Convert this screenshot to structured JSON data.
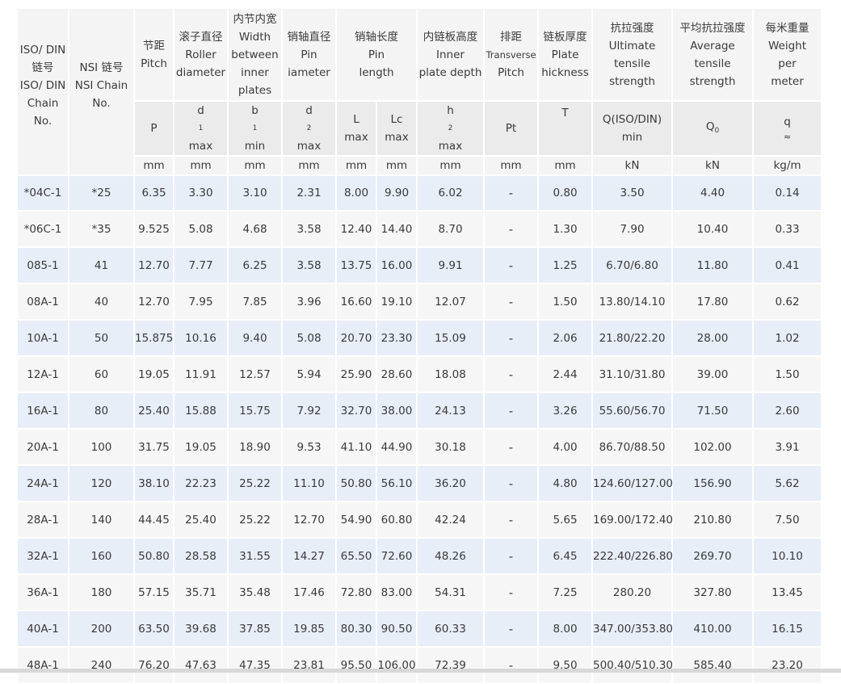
{
  "header": {
    "col_iso": [
      "ISO/ DIN",
      "链号",
      "ISO/ DIN",
      "Chain",
      "No."
    ],
    "col_ansi": [
      "NSI 链号",
      "NSI Chain",
      "No."
    ],
    "col_pitch": [
      "节距",
      "Pitch"
    ],
    "col_roller": [
      "滚子直径",
      "Roller",
      "diameter"
    ],
    "col_width": [
      "内节内宽",
      "Width",
      "between",
      "inner",
      "plates"
    ],
    "col_pin_dia": [
      "销轴直径",
      "Pin",
      "iameter"
    ],
    "col_pin_len": [
      "销轴长度",
      "Pin",
      "length"
    ],
    "col_inner_plate": [
      "内链板高度",
      "Inner",
      "plate depth"
    ],
    "col_transverse": [
      "排距",
      "Transverse",
      "Pitch"
    ],
    "col_plate_thick": [
      "链板厚度",
      "Plate",
      "hickness"
    ],
    "col_ultimate": [
      "抗拉强度",
      "Ultimate",
      "tensile",
      "strength"
    ],
    "col_average": [
      "平均抗拉强度",
      "Average",
      "tensile",
      "strength"
    ],
    "col_weight": [
      "每米重量",
      "Weight",
      "per",
      "meter"
    ],
    "symbols": {
      "pitch": "P",
      "roller": [
        "d",
        "1",
        "max"
      ],
      "width": [
        "b",
        "1",
        "min"
      ],
      "pin_dia": [
        "d",
        "2",
        "max"
      ],
      "pin_len_L": [
        "L",
        "max"
      ],
      "pin_len_Lc": [
        "Lc",
        "max"
      ],
      "inner_plate": [
        "h",
        "2",
        "max"
      ],
      "transverse": "Pt",
      "plate_thick": "T",
      "ultimate": [
        "Q(ISO/DIN)",
        "min"
      ],
      "average": [
        "Q",
        "0"
      ],
      "weight": [
        "q",
        "≈"
      ]
    },
    "units": [
      "mm",
      "mm",
      "mm",
      "mm",
      "mm",
      "mm",
      "mm",
      "mm",
      "mm",
      "kN",
      "kN",
      "kg/m"
    ]
  },
  "rows": [
    [
      "*04C-1",
      "*25",
      "6.35",
      "3.30",
      "3.10",
      "2.31",
      "8.00",
      "9.90",
      "6.02",
      "-",
      "0.80",
      "3.50",
      "4.40",
      "0.14"
    ],
    [
      "*06C-1",
      "*35",
      "9.525",
      "5.08",
      "4.68",
      "3.58",
      "12.40",
      "14.40",
      "8.70",
      "-",
      "1.30",
      "7.90",
      "10.40",
      "0.33"
    ],
    [
      "085-1",
      "41",
      "12.70",
      "7.77",
      "6.25",
      "3.58",
      "13.75",
      "16.00",
      "9.91",
      "-",
      "1.25",
      "6.70/6.80",
      "11.80",
      "0.41"
    ],
    [
      "08A-1",
      "40",
      "12.70",
      "7.95",
      "7.85",
      "3.96",
      "16.60",
      "19.10",
      "12.07",
      "-",
      "1.50",
      "13.80/14.10",
      "17.80",
      "0.62"
    ],
    [
      "10A-1",
      "50",
      "15.875",
      "10.16",
      "9.40",
      "5.08",
      "20.70",
      "23.30",
      "15.09",
      "-",
      "2.06",
      "21.80/22.20",
      "28.00",
      "1.02"
    ],
    [
      "12A-1",
      "60",
      "19.05",
      "11.91",
      "12.57",
      "5.94",
      "25.90",
      "28.60",
      "18.08",
      "-",
      "2.44",
      "31.10/31.80",
      "39.00",
      "1.50"
    ],
    [
      "16A-1",
      "80",
      "25.40",
      "15.88",
      "15.75",
      "7.92",
      "32.70",
      "38.00",
      "24.13",
      "-",
      "3.26",
      "55.60/56.70",
      "71.50",
      "2.60"
    ],
    [
      "20A-1",
      "100",
      "31.75",
      "19.05",
      "18.90",
      "9.53",
      "41.10",
      "44.90",
      "30.18",
      "-",
      "4.00",
      "86.70/88.50",
      "102.00",
      "3.91"
    ],
    [
      "24A-1",
      "120",
      "38.10",
      "22.23",
      "25.22",
      "11.10",
      "50.80",
      "56.10",
      "36.20",
      "-",
      "4.80",
      "124.60/127.00",
      "156.90",
      "5.62"
    ],
    [
      "28A-1",
      "140",
      "44.45",
      "25.40",
      "25.22",
      "12.70",
      "54.90",
      "60.80",
      "42.24",
      "-",
      "5.65",
      "169.00/172.40",
      "210.80",
      "7.50"
    ],
    [
      "32A-1",
      "160",
      "50.80",
      "28.58",
      "31.55",
      "14.27",
      "65.50",
      "72.60",
      "48.26",
      "-",
      "6.45",
      "222.40/226.80",
      "269.70",
      "10.10"
    ],
    [
      "36A-1",
      "180",
      "57.15",
      "35.71",
      "35.48",
      "17.46",
      "72.80",
      "83.00",
      "54.31",
      "-",
      "7.25",
      "280.20",
      "327.80",
      "13.45"
    ],
    [
      "40A-1",
      "200",
      "63.50",
      "39.68",
      "37.85",
      "19.85",
      "80.30",
      "90.50",
      "60.33",
      "-",
      "8.00",
      "347.00/353.80",
      "410.00",
      "16.15"
    ],
    [
      "48A-1",
      "240",
      "76.20",
      "47.63",
      "47.35",
      "23.81",
      "95.50",
      "106.00",
      "72.39",
      "-",
      "9.50",
      "500.40/510.30",
      "585.40",
      "23.20"
    ]
  ]
}
